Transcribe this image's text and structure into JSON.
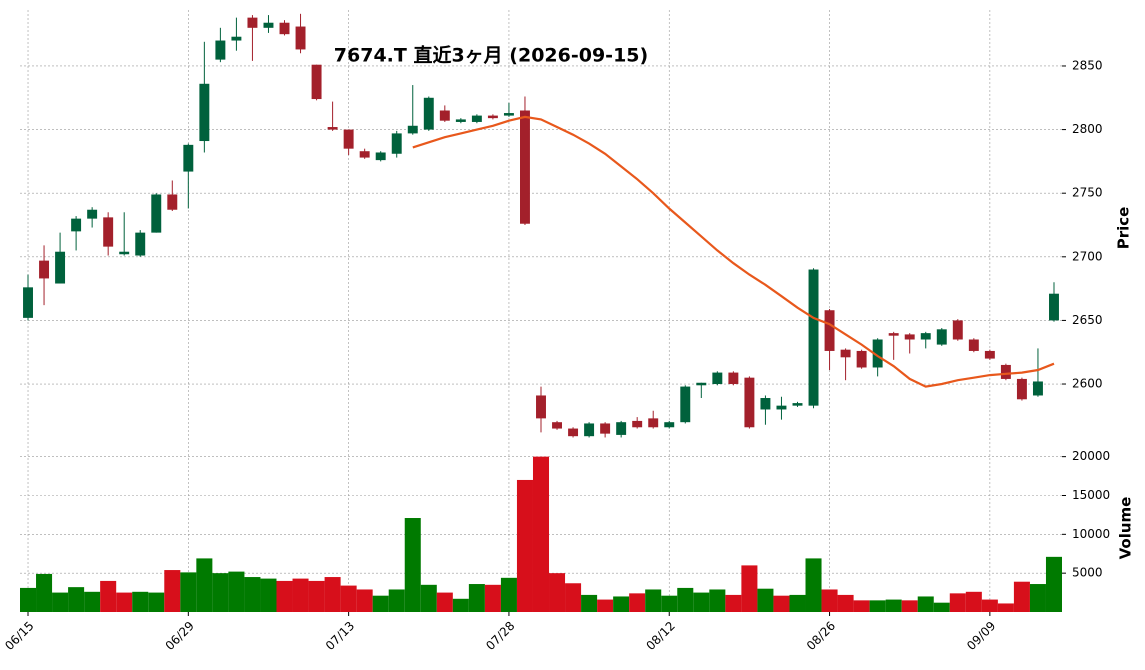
{
  "chart_data": {
    "type": "candlestick",
    "title": "7674.T  直近3ヶ月 (2026-09-15)",
    "y_label": "Price",
    "volume_label": "Volume",
    "categories": [
      "06/15",
      null,
      null,
      null,
      null,
      null,
      null,
      null,
      null,
      null,
      "06/29",
      null,
      null,
      null,
      null,
      null,
      null,
      null,
      null,
      null,
      "07/13",
      null,
      null,
      null,
      null,
      null,
      null,
      null,
      null,
      null,
      "07/28",
      null,
      null,
      null,
      null,
      null,
      null,
      null,
      null,
      null,
      "08/12",
      null,
      null,
      null,
      null,
      null,
      null,
      null,
      null,
      null,
      "08/26",
      null,
      null,
      null,
      null,
      null,
      null,
      null,
      null,
      null,
      "09/09",
      null,
      null,
      null,
      null
    ],
    "open": [
      2652,
      2697,
      2679,
      2720,
      2730,
      2731,
      2702,
      2701,
      2719,
      2749,
      2767,
      2791,
      2855,
      2870,
      2888,
      2880,
      2884,
      2881,
      2851,
      2802,
      2800,
      2783,
      2776,
      2781,
      2797,
      2800,
      2815,
      2806,
      2806,
      2811,
      2811,
      2815,
      2591,
      2570,
      2565,
      2559,
      2569,
      2560,
      2571,
      2573,
      2566,
      2570,
      2599,
      2600,
      2609,
      2605,
      2580,
      2580,
      2583,
      2583,
      2658,
      2627,
      2626,
      2613,
      2640,
      2639,
      2635,
      2631,
      2650,
      2635,
      2626,
      2615,
      2604,
      2591,
      2650
    ],
    "high": [
      2686,
      2709,
      2719,
      2732,
      2739,
      2735,
      2735,
      2721,
      2750,
      2760,
      2789,
      2869,
      2880,
      2888,
      2890,
      2890,
      2886,
      2891,
      2851,
      2822,
      2800,
      2785,
      2783,
      2799,
      2835,
      2826,
      2819,
      2809,
      2812,
      2812,
      2821,
      2826,
      2598,
      2571,
      2566,
      2570,
      2570,
      2571,
      2574,
      2579,
      2571,
      2599,
      2601,
      2610,
      2610,
      2606,
      2591,
      2590,
      2586,
      2691,
      2659,
      2628,
      2627,
      2636,
      2641,
      2640,
      2641,
      2644,
      2651,
      2636,
      2627,
      2616,
      2605,
      2628,
      2680
    ],
    "low": [
      2650,
      2662,
      2679,
      2705,
      2723,
      2701,
      2701,
      2700,
      2719,
      2736,
      2738,
      2782,
      2853,
      2862,
      2854,
      2876,
      2874,
      2860,
      2823,
      2799,
      2780,
      2777,
      2775,
      2778,
      2796,
      2799,
      2806,
      2805,
      2805,
      2808,
      2810,
      2725,
      2562,
      2564,
      2558,
      2558,
      2558,
      2558,
      2565,
      2565,
      2565,
      2569,
      2589,
      2599,
      2599,
      2565,
      2568,
      2572,
      2582,
      2581,
      2611,
      2603,
      2612,
      2606,
      2619,
      2624,
      2628,
      2630,
      2634,
      2625,
      2619,
      2603,
      2587,
      2590,
      2649
    ],
    "close": [
      2676,
      2683,
      2704,
      2730,
      2737,
      2708,
      2704,
      2719,
      2749,
      2737,
      2788,
      2836,
      2870,
      2873,
      2880,
      2884,
      2875,
      2863,
      2824,
      2800,
      2785,
      2778,
      2782,
      2797,
      2803,
      2825,
      2807,
      2808,
      2811,
      2809,
      2813,
      2726,
      2573,
      2565,
      2559,
      2569,
      2561,
      2570,
      2566,
      2566,
      2570,
      2598,
      2601,
      2609,
      2600,
      2566,
      2589,
      2583,
      2585,
      2690,
      2626,
      2621,
      2613,
      2635,
      2638,
      2635,
      2640,
      2643,
      2635,
      2626,
      2620,
      2604,
      2588,
      2602,
      2671
    ],
    "ma": [
      null,
      null,
      null,
      null,
      null,
      null,
      null,
      null,
      null,
      null,
      null,
      null,
      null,
      null,
      null,
      null,
      null,
      null,
      null,
      null,
      null,
      null,
      null,
      null,
      2786,
      2790,
      2794,
      2797,
      2800,
      2803,
      2807,
      2810,
      2808,
      2802,
      2796,
      2789,
      2781,
      2771,
      2761,
      2750,
      2738,
      2727,
      2716,
      2705,
      2695,
      2686,
      2678,
      2669,
      2660,
      2652,
      2647,
      2639,
      2631,
      2622,
      2614,
      2604,
      2598,
      2600,
      2603,
      2605,
      2607,
      2608,
      2609,
      2611,
      2616
    ],
    "volume": [
      3100,
      4900,
      2500,
      3200,
      2600,
      4000,
      2500,
      2600,
      2500,
      5400,
      5100,
      6900,
      5000,
      5200,
      4500,
      4300,
      4000,
      4300,
      4000,
      4500,
      3400,
      2900,
      2100,
      2900,
      12100,
      3500,
      2500,
      1700,
      3600,
      3500,
      4400,
      17000,
      20000,
      5000,
      3700,
      2200,
      1600,
      2000,
      2400,
      2900,
      2100,
      3100,
      2500,
      2900,
      2200,
      6000,
      3000,
      2100,
      2200,
      6900,
      2900,
      2200,
      1500,
      1500,
      1600,
      1500,
      2000,
      1200,
      2400,
      2600,
      1600,
      1100,
      3900,
      3600,
      7100
    ],
    "ylim": [
      2556,
      2894
    ],
    "yticks": [
      2600,
      2650,
      2700,
      2750,
      2800,
      2850
    ],
    "volume_ylim": [
      0,
      21500
    ],
    "volume_yticks": [
      5000,
      10000,
      15000,
      20000
    ],
    "up_color": "#00613c",
    "down_color": "#a3202b",
    "volume_up_color": "#007a00",
    "volume_down_color": "#d70f1b",
    "ma_color": "#e8581c",
    "grid": true
  }
}
